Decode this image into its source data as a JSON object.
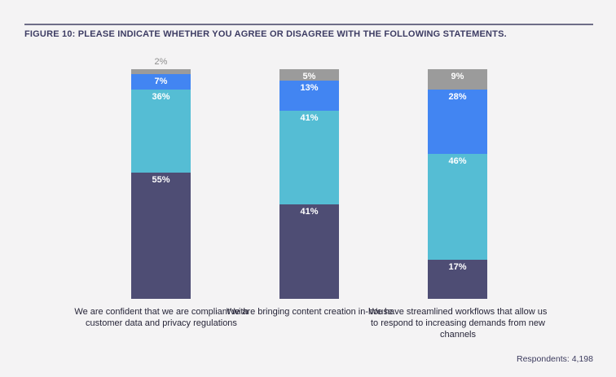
{
  "figure": {
    "title": "FIGURE 10: PLEASE INDICATE WHETHER YOU AGREE OR DISAGREE WITH THE FOLLOWING STATEMENTS.",
    "respondents_note": "Respondents: 4,198"
  },
  "colors": {
    "background": "#f4f3f4",
    "rule": "#6e6d87",
    "title_text": "#3d3c63",
    "category_text": "#262538",
    "outside_label_text": "#8e8e8e"
  },
  "chart_data": {
    "type": "bar",
    "stacked": true,
    "orientation": "vertical",
    "unit": "percent",
    "legend_position": "none",
    "grid": false,
    "ylim": [
      0,
      100
    ],
    "categories": [
      "We are confident that we are compliant with customer data and privacy regulations",
      "We are bringing content creation in-house",
      "We have streamlined workflows that allow us to respond to increasing demands from new channels"
    ],
    "series": [
      {
        "name": "dark-purple-bottom-segment",
        "color": "#4e4d74",
        "values": [
          55,
          41,
          17
        ]
      },
      {
        "name": "teal-segment",
        "color": "#55bdd4",
        "values": [
          36,
          41,
          46
        ]
      },
      {
        "name": "blue-segment",
        "color": "#4285f2",
        "values": [
          7,
          13,
          28
        ]
      },
      {
        "name": "gray-top-segment",
        "color": "#9b9b9b",
        "values": [
          2,
          5,
          9
        ]
      }
    ],
    "labels": [
      [
        "55%",
        "36%",
        "7%",
        "2%"
      ],
      [
        "41%",
        "41%",
        "13%",
        "5%"
      ],
      [
        "17%",
        "46%",
        "28%",
        "9%"
      ]
    ]
  }
}
